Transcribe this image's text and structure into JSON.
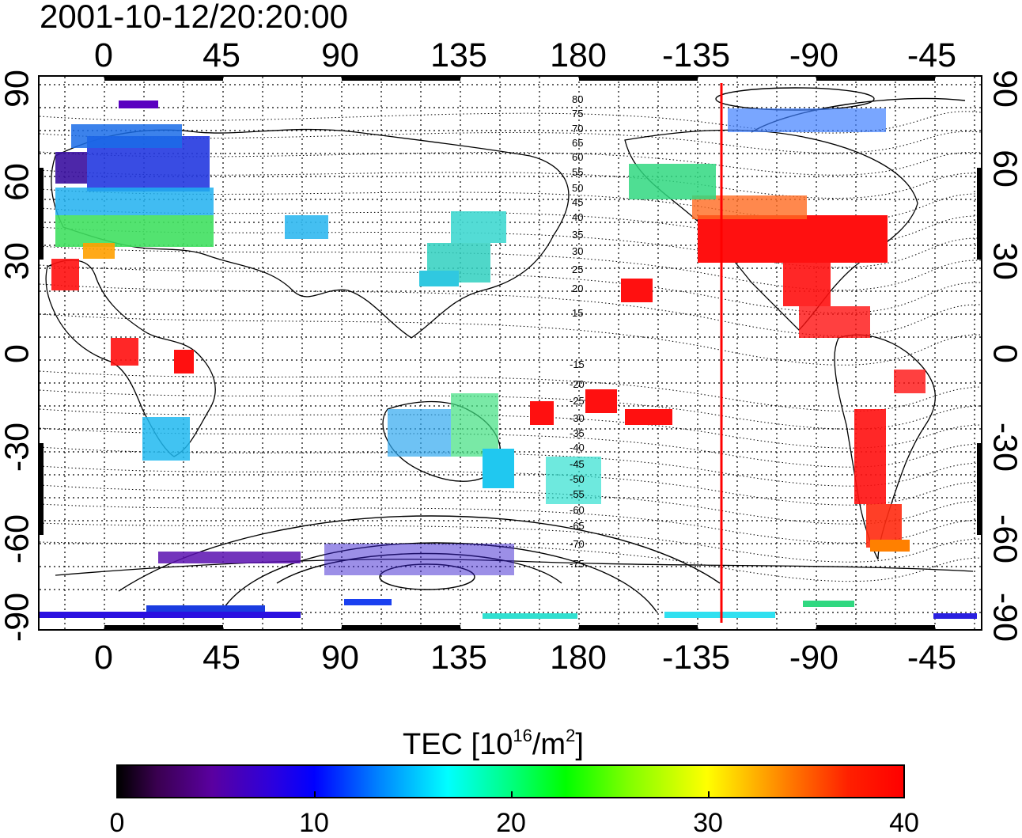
{
  "title": "2001-10-12/20:20:00",
  "longitude_ticks": [
    "0",
    "45",
    "90",
    "135",
    "180",
    "-135",
    "-90",
    "-45"
  ],
  "latitude_ticks": [
    "90",
    "60",
    "30",
    "0",
    "-30",
    "-60",
    "-90"
  ],
  "contour_labels": [
    "80",
    "75",
    "70",
    "65",
    "60",
    "55",
    "50",
    "45",
    "40",
    "35",
    "30",
    "25",
    "20",
    "15",
    "-15",
    "-20",
    "-25",
    "-30",
    "-35",
    "-40",
    "-45",
    "-50",
    "-55",
    "-60",
    "-65",
    "-70",
    "-75"
  ],
  "colorbar": {
    "title_prefix": "TEC  [10",
    "title_sup1": "16",
    "title_mid": "/m",
    "title_sup2": "2",
    "title_suffix": "]",
    "ticks": [
      "0",
      "10",
      "20",
      "30",
      "40"
    ],
    "range": [
      0,
      40
    ]
  },
  "map": {
    "projection": "equirectangular",
    "lon_range": [
      -25,
      335
    ],
    "lat_range": [
      -90,
      90
    ],
    "terminator_longitude": -125,
    "colors": {
      "coastline": "#000000",
      "terminator": "#ff0000",
      "grid": "#000000"
    }
  }
}
